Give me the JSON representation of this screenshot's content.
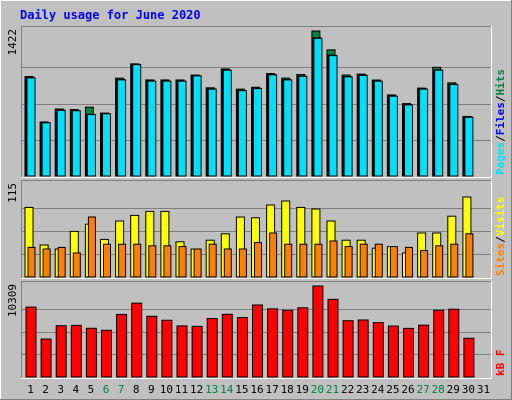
{
  "chart_data": [
    {
      "type": "bar",
      "title": "Daily usage for June 2020",
      "categories": [
        "1",
        "2",
        "3",
        "4",
        "5",
        "6",
        "7",
        "8",
        "9",
        "10",
        "11",
        "12",
        "13",
        "14",
        "15",
        "16",
        "17",
        "18",
        "19",
        "20",
        "21",
        "22",
        "23",
        "24",
        "25",
        "26",
        "27",
        "28",
        "29",
        "30",
        "31"
      ],
      "weekend_days": [
        "6",
        "7",
        "13",
        "14",
        "20",
        "21",
        "27",
        "28"
      ],
      "ylim": [
        0,
        1422
      ],
      "ytick_label": "1422",
      "legend": [
        {
          "label": "Pages",
          "color": "#00e0f8"
        },
        {
          "label": "Files",
          "color": "#0000ff"
        },
        {
          "label": "Hits",
          "color": "#008040"
        }
      ],
      "series": [
        {
          "name": "Hits",
          "color": "#008040",
          "values": [
            975,
            530,
            657,
            652,
            675,
            617,
            960,
            1100,
            942,
            942,
            942,
            990,
            865,
            1050,
            852,
            870,
            1005,
            960,
            995,
            1422,
            1237,
            990,
            999,
            941,
            795,
            710,
            862,
            1066,
            914,
            584,
            null
          ]
        },
        {
          "name": "Files",
          "color": "#0000ff",
          "values": [
            965,
            525,
            647,
            642,
            605,
            612,
            945,
            1095,
            932,
            932,
            932,
            985,
            855,
            1040,
            840,
            860,
            995,
            945,
            980,
            1355,
            1185,
            975,
            990,
            932,
            785,
            700,
            855,
            1040,
            900,
            579,
            null
          ]
        },
        {
          "name": "Pages",
          "color": "#00e0f8",
          "values": [
            962,
            522,
            644,
            640,
            602,
            610,
            942,
            1092,
            930,
            930,
            930,
            982,
            852,
            1037,
            837,
            857,
            992,
            942,
            977,
            1350,
            1180,
            972,
            987,
            930,
            782,
            697,
            852,
            1037,
            897,
            576,
            null
          ]
        }
      ]
    },
    {
      "type": "bar",
      "categories": [
        "1",
        "2",
        "3",
        "4",
        "5",
        "6",
        "7",
        "8",
        "9",
        "10",
        "11",
        "12",
        "13",
        "14",
        "15",
        "16",
        "17",
        "18",
        "19",
        "20",
        "21",
        "22",
        "23",
        "24",
        "25",
        "26",
        "27",
        "28",
        "29",
        "30",
        "31"
      ],
      "ylim": [
        0,
        115
      ],
      "ytick_label": "115",
      "legend": [
        {
          "label": "Sites",
          "color": "#ff8000"
        },
        {
          "label": "Visits",
          "color": "#ffff00"
        }
      ],
      "series": [
        {
          "name": "Visits",
          "color": "#ffff00",
          "values": [
            87,
            40,
            35,
            57,
            66,
            47,
            70,
            77,
            82,
            82,
            44,
            35,
            46,
            54,
            75,
            74,
            90,
            95,
            87,
            85,
            70,
            46,
            46,
            36,
            38,
            30,
            55,
            55,
            76,
            100,
            null
          ]
        },
        {
          "name": "Sites",
          "color": "#ff8000",
          "values": [
            37,
            35,
            37,
            30,
            75,
            41,
            41,
            41,
            39,
            39,
            38,
            35,
            41,
            35,
            35,
            43,
            55,
            41,
            41,
            41,
            45,
            38,
            41,
            41,
            38,
            37,
            33,
            39,
            41,
            54,
            null
          ]
        }
      ]
    },
    {
      "type": "bar",
      "categories": [
        "1",
        "2",
        "3",
        "4",
        "5",
        "6",
        "7",
        "8",
        "9",
        "10",
        "11",
        "12",
        "13",
        "14",
        "15",
        "16",
        "17",
        "18",
        "19",
        "20",
        "21",
        "22",
        "23",
        "24",
        "25",
        "26",
        "27",
        "28",
        "29",
        "30",
        "31"
      ],
      "ylim": [
        0,
        10309
      ],
      "ytick_label": "10309",
      "legend": [
        {
          "label": "kB F",
          "color": "#ff0000"
        }
      ],
      "series": [
        {
          "name": "kB F",
          "color": "#ff0000",
          "values": [
            7920,
            4300,
            5810,
            5850,
            5520,
            5290,
            7090,
            8370,
            6880,
            6430,
            5790,
            5740,
            6620,
            7100,
            6730,
            8160,
            7720,
            7560,
            7840,
            10309,
            8800,
            6380,
            6460,
            6160,
            5770,
            5510,
            5870,
            7560,
            7680,
            4390,
            null
          ]
        }
      ]
    }
  ]
}
